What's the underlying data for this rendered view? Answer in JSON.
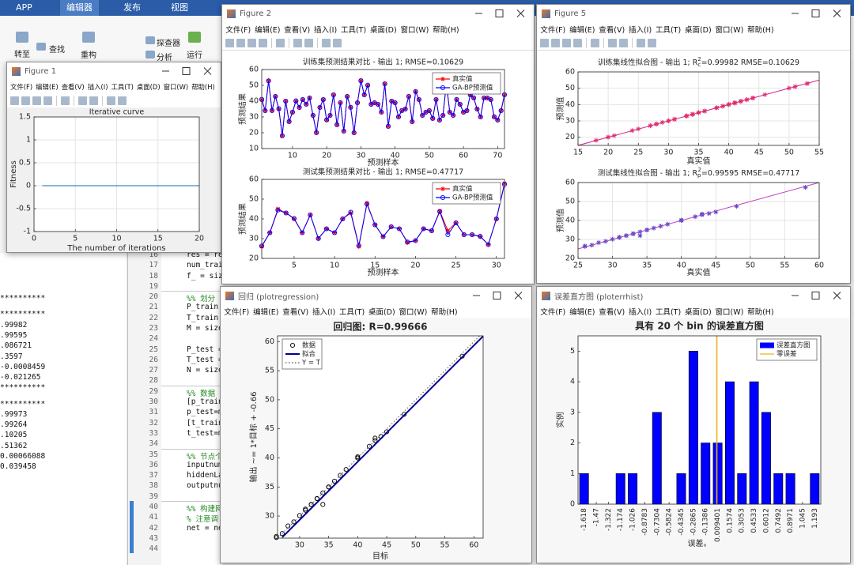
{
  "desktop": {
    "tabs": [
      "APP",
      "编辑器",
      "发布",
      "视图"
    ],
    "toolbar": [
      "转至",
      "查找",
      "重构",
      "探查器",
      "分析",
      "运行"
    ],
    "command_output": [
      "**********",
      "**********",
      ".99982",
      ".99595",
      ".086721",
      ".3597",
      "-0.0008459",
      "-0.021265",
      "**********",
      "**********",
      ".99973",
      ".99264",
      ".10205",
      ".51362",
      "0.00066088",
      "0.039458"
    ],
    "editor_lines": [
      {
        "number": "16",
        "code": "res = re"
      },
      {
        "number": "17",
        "code": "num_trai"
      },
      {
        "number": "18",
        "code": "f_ = siz"
      },
      {
        "number": "19"
      },
      {
        "number": "20",
        "code": "%%  划分"
      },
      {
        "number": "21",
        "code": "P_train"
      },
      {
        "number": "22",
        "code": "T_train"
      },
      {
        "number": "23",
        "code": "M = size"
      },
      {
        "number": "24"
      },
      {
        "number": "25",
        "code": "P_test ="
      },
      {
        "number": "26",
        "code": "T_test ="
      },
      {
        "number": "27",
        "code": "N = size"
      },
      {
        "number": "28"
      },
      {
        "number": "29",
        "code": "%%  数据"
      },
      {
        "number": "30",
        "code": "[p_train"
      },
      {
        "number": "31",
        "code": "p_test=m"
      },
      {
        "number": "32",
        "code": "[t_train"
      },
      {
        "number": "33",
        "code": "t_test=m"
      },
      {
        "number": "34"
      },
      {
        "number": "35",
        "code": "%% 节点个"
      },
      {
        "number": "36",
        "code": "inputnum"
      },
      {
        "number": "37",
        "code": "hiddenLa"
      },
      {
        "number": "38",
        "code": "outputnu"
      },
      {
        "number": "39"
      },
      {
        "number": "40",
        "code": "%% 构建网"
      },
      {
        "number": "41",
        "code": "% 注意调"
      },
      {
        "number": "42",
        "code": "net = ne"
      },
      {
        "number": "43"
      },
      {
        "number": "44"
      }
    ]
  },
  "figure_menu": [
    "文件(F)",
    "编辑(E)",
    "查看(V)",
    "插入(I)",
    "工具(T)",
    "桌面(D)",
    "窗口(W)",
    "帮助(H)"
  ],
  "windows": [
    {
      "title": "Figure 1"
    },
    {
      "title": "Figure 2"
    },
    {
      "title": "Figure 5"
    },
    {
      "title": "回归 (plotregression)"
    },
    {
      "title": "误差直方图 (ploterrhist)"
    }
  ],
  "chart_data": [
    {
      "type": "line",
      "title": "Iterative curve",
      "x_label": "The number of iterations",
      "y_label": "Fitness",
      "series": [
        {
          "color": "#0072bd",
          "x": [
            1,
            2,
            3,
            4,
            5,
            6,
            7,
            8,
            9,
            10,
            11,
            12,
            13,
            14,
            15,
            16,
            17,
            18,
            19,
            20
          ],
          "values": [
            0,
            0,
            0,
            0,
            0,
            0,
            0,
            0,
            0,
            0,
            0,
            0,
            0,
            0,
            0,
            0,
            0,
            0,
            0,
            0
          ]
        }
      ],
      "xlim": [
        0,
        20
      ],
      "ylim": [
        -1,
        1.5
      ],
      "xticks": [
        0,
        5,
        10,
        15,
        20
      ],
      "yticks": [
        -1,
        -0.5,
        0,
        0.5,
        1,
        1.5
      ],
      "grid": true
    },
    {
      "type": "line",
      "title": "训练集预测结果对比 - 输出 1; RMSE=0.10629",
      "x_label": "预测样本",
      "y_label": "预测结果",
      "x": [
        1,
        2,
        3,
        4,
        5,
        6,
        7,
        8,
        9,
        10,
        11,
        12,
        13,
        14,
        15,
        16,
        17,
        18,
        19,
        20,
        21,
        22,
        23,
        24,
        25,
        26,
        27,
        28,
        29,
        30,
        31,
        32,
        33,
        34,
        35,
        36,
        37,
        38,
        39,
        40,
        41,
        42,
        43,
        44,
        45,
        46,
        47,
        48,
        49,
        50,
        51,
        52,
        53,
        54,
        55,
        56,
        57,
        58,
        59,
        60,
        61,
        62,
        63,
        64,
        65,
        66,
        67,
        68,
        69,
        70,
        71,
        72
      ],
      "series": [
        {
          "name": "真实值",
          "color": "#ff0000",
          "marker": "star",
          "values": [
            41,
            34,
            53,
            34,
            43,
            35,
            18,
            40,
            27,
            33,
            40,
            36,
            41,
            38,
            42,
            31,
            20,
            36,
            41,
            28,
            31,
            44,
            25,
            39,
            21,
            43,
            36,
            20,
            39,
            53,
            44,
            50,
            38,
            39,
            38,
            33,
            51,
            24,
            40,
            39,
            30,
            34,
            35,
            43,
            27,
            46,
            41,
            31,
            33,
            34,
            29,
            41,
            28,
            31,
            51,
            33,
            31,
            41,
            38,
            33,
            34,
            44,
            42,
            35,
            30,
            42,
            42,
            41,
            30,
            28,
            34,
            44
          ]
        },
        {
          "name": "GA-BP预测值",
          "color": "#0000ff",
          "marker": "circle",
          "values": [
            41.1,
            34,
            52.8,
            34.1,
            43,
            35.2,
            18.1,
            40,
            27.1,
            33,
            40.2,
            36,
            41,
            38.1,
            42,
            31,
            20.1,
            36,
            41,
            28.2,
            31,
            44,
            25.1,
            39,
            21,
            43,
            36.1,
            20,
            39,
            52.9,
            44,
            50.1,
            38,
            39,
            38,
            33.1,
            51,
            24.1,
            40,
            39,
            30,
            34.1,
            35,
            43,
            27,
            46.1,
            41,
            31,
            33,
            34,
            29.1,
            41,
            28,
            31,
            50.9,
            33,
            31,
            41.1,
            38,
            33,
            34,
            44,
            42.1,
            35,
            30,
            42,
            42,
            41,
            30.1,
            28,
            34,
            44.1
          ]
        }
      ],
      "xlim": [
        1,
        72
      ],
      "ylim": [
        10,
        60
      ],
      "xticks": [
        10,
        20,
        30,
        40,
        50,
        60,
        70
      ],
      "yticks": [
        10,
        20,
        30,
        40,
        50,
        60
      ],
      "grid": false,
      "legend": "upper right"
    },
    {
      "type": "line",
      "title": "测试集预测结果对比 - 输出 1; RMSE=0.47717",
      "x_label": "预测样本",
      "y_label": "预测结果",
      "x": [
        1,
        2,
        3,
        4,
        5,
        6,
        7,
        8,
        9,
        10,
        11,
        12,
        13,
        14,
        15,
        16,
        17,
        18,
        19,
        20,
        21,
        22,
        23,
        24,
        25,
        26,
        27,
        28,
        29,
        30,
        31
      ],
      "series": [
        {
          "name": "真实值",
          "color": "#ff0000",
          "marker": "star",
          "values": [
            26,
            33,
            45,
            43,
            40,
            33,
            42,
            30,
            35,
            33,
            40,
            43,
            26,
            48,
            37,
            31,
            36,
            35,
            28,
            29,
            35,
            34,
            44,
            34,
            38,
            32,
            32,
            31,
            27,
            40,
            58
          ]
        },
        {
          "name": "GA-BP预测值",
          "color": "#0000ff",
          "marker": "circle",
          "values": [
            26.3,
            33,
            44.5,
            43,
            40.2,
            33,
            42,
            30.1,
            35,
            33,
            40,
            43.4,
            26.5,
            47.5,
            37,
            31,
            36,
            35,
            28.3,
            29,
            35,
            34,
            43.7,
            32,
            38,
            32,
            32,
            31.2,
            27,
            40,
            57.5
          ]
        }
      ],
      "xlim": [
        1,
        31
      ],
      "ylim": [
        20,
        60
      ],
      "xticks": [
        5,
        10,
        15,
        20,
        25,
        30
      ],
      "yticks": [
        20,
        30,
        40,
        50,
        60
      ],
      "grid": false,
      "legend": "upper right"
    },
    {
      "type": "scatter",
      "title_parts": [
        "训练集线性拟合图 - 输出 1; R",
        "c",
        "2",
        "=0.99982  RMSE=0.10629"
      ],
      "x_label": "真实值",
      "y_label": "预测值",
      "series": [
        {
          "color": "#e8365f",
          "marker": "star",
          "x": [
            41,
            34,
            53,
            34,
            43,
            35,
            18,
            40,
            27,
            33,
            40,
            36,
            41,
            38,
            42,
            31,
            20,
            36,
            41,
            28,
            31,
            44,
            25,
            39,
            21,
            43,
            36,
            20,
            39,
            53,
            44,
            50,
            38,
            39,
            38,
            33,
            51,
            24,
            40,
            39,
            30,
            34,
            35,
            43,
            27,
            46,
            41,
            31,
            33,
            34,
            29,
            41,
            28,
            31,
            51,
            33,
            31,
            41,
            38,
            33,
            34,
            44,
            42,
            35,
            30,
            42,
            42,
            41,
            30,
            28,
            34,
            44
          ],
          "values": [
            41.1,
            34,
            52.8,
            34.1,
            43,
            35.2,
            18.1,
            40,
            27.1,
            33,
            40.2,
            36,
            41,
            38.1,
            42,
            31,
            20.1,
            36,
            41,
            28.2,
            31,
            44,
            25.1,
            39,
            21,
            43,
            36.1,
            20,
            39,
            52.9,
            44,
            50.1,
            38,
            39,
            38,
            33.1,
            51,
            24.1,
            40,
            39,
            30,
            34.1,
            35,
            43,
            27,
            46.1,
            41,
            31,
            33,
            34,
            29.1,
            41,
            28,
            31,
            50.9,
            33,
            31,
            41.1,
            38,
            33,
            34,
            44,
            42.1,
            35,
            30,
            42,
            42,
            41,
            30.1,
            28,
            34,
            44.1
          ]
        },
        {
          "color": "#cc2299",
          "line_style": "solid",
          "x": [
            15,
            55
          ],
          "values": [
            15,
            55
          ]
        }
      ],
      "xlim": [
        15,
        55
      ],
      "ylim": [
        15,
        60
      ],
      "xticks": [
        15,
        20,
        25,
        30,
        35,
        40,
        45,
        50,
        55
      ],
      "yticks": [
        20,
        30,
        40,
        50,
        60
      ],
      "grid": true
    },
    {
      "type": "scatter",
      "title_parts": [
        "测试集线性拟合图 - 输出 1; R",
        "p",
        "2",
        "=0.99595  RMSE=0.47717"
      ],
      "x_label": "真实值",
      "y_label": "预测值",
      "series": [
        {
          "color": "#4646c8",
          "marker": "star",
          "x": [
            26,
            33,
            45,
            43,
            40,
            33,
            42,
            30,
            35,
            33,
            40,
            43,
            26,
            48,
            37,
            31,
            36,
            35,
            28,
            29,
            35,
            34,
            44,
            34,
            38,
            32,
            32,
            31,
            27,
            40,
            58
          ],
          "values": [
            26.3,
            33,
            44.5,
            43,
            40.2,
            33,
            42,
            30.1,
            35,
            33,
            40,
            43.4,
            26.5,
            47.5,
            37,
            31,
            36,
            35,
            28.3,
            29,
            35,
            34,
            43.7,
            32,
            38,
            32,
            32,
            31.2,
            27,
            40,
            57.5
          ]
        },
        {
          "color": "#c040c0",
          "line_style": "solid",
          "x": [
            25,
            60
          ],
          "values": [
            25,
            60
          ]
        }
      ],
      "xlim": [
        25,
        60
      ],
      "ylim": [
        20,
        60
      ],
      "xticks": [
        25,
        30,
        35,
        40,
        45,
        50,
        55,
        60
      ],
      "yticks": [
        20,
        30,
        40,
        50,
        60
      ],
      "grid": true
    },
    {
      "type": "scatter",
      "title": "回归图: R=0.99666",
      "x_label": "目标",
      "y_label": "输出 ~= 1*目标 + -0.66",
      "series": [
        {
          "name": "数据",
          "color": "#000000",
          "marker": "circle",
          "x": [
            26,
            33,
            45,
            43,
            40,
            33,
            42,
            30,
            35,
            33,
            40,
            43,
            26,
            48,
            37,
            31,
            36,
            35,
            28,
            29,
            35,
            34,
            44,
            34,
            38,
            32,
            32,
            31,
            27,
            40,
            58
          ],
          "values": [
            26.3,
            33,
            44.5,
            43,
            40.2,
            33,
            42,
            30.1,
            35,
            33,
            40,
            43.4,
            26.5,
            47.5,
            37,
            31,
            36,
            35,
            28.3,
            29,
            35,
            34,
            43.7,
            32,
            38,
            32,
            32,
            31.2,
            27,
            40,
            57.5
          ]
        },
        {
          "name": "拟合",
          "color": "#00008b",
          "line_style": "solid",
          "line_width": 2,
          "x": [
            27,
            61.6
          ],
          "values": [
            26.34,
            60.94
          ]
        },
        {
          "name": "Y = T",
          "color": "#555555",
          "line_style": "dotted",
          "x": [
            26.2,
            61
          ],
          "values": [
            26.2,
            61
          ]
        }
      ],
      "xlim": [
        26.2,
        61.6
      ],
      "ylim": [
        26.2,
        61
      ],
      "xticks": [
        30,
        35,
        40,
        45,
        50,
        55,
        60
      ],
      "yticks": [
        30,
        35,
        40,
        45,
        50,
        55,
        60
      ],
      "grid": false,
      "legend": "upper left"
    },
    {
      "type": "histogram",
      "title": "具有 20 个 bin 的误差直方图",
      "x_label": "误差。",
      "y_label": "实例",
      "bins": [
        -1.692,
        -1.544,
        -1.396,
        -1.248,
        -1.1,
        -0.952,
        -0.804,
        -0.656,
        -0.508,
        -0.36,
        -0.212,
        -0.064,
        0.084,
        0.232,
        0.38,
        0.527,
        0.675,
        0.823,
        0.971,
        1.119,
        1.267
      ],
      "series": [
        {
          "name": "误差直方图",
          "color": "#0000ff",
          "values": [
            1,
            0,
            0,
            1,
            1,
            0,
            3,
            0,
            1,
            5,
            2,
            2,
            4,
            1,
            4,
            3,
            1,
            1,
            0,
            1
          ]
        }
      ],
      "zero_line": {
        "name": "零误差",
        "color": "#edb120",
        "x": 0
      },
      "xlim": [
        -1.692,
        1.267
      ],
      "ylim": [
        0,
        5.5
      ],
      "xticks": [
        -1.618,
        -1.47,
        -1.322,
        -1.174,
        -1.026,
        -0.8783,
        -0.7304,
        -0.5824,
        -0.4345,
        -0.2865,
        -0.1386,
        0.009401,
        0.1574,
        0.3053,
        0.4533,
        0.6012,
        0.7492,
        0.8971,
        1.045,
        1.193
      ],
      "yticks": [
        0,
        1,
        2,
        3,
        4,
        5
      ],
      "grid": false,
      "legend": "upper right"
    }
  ]
}
